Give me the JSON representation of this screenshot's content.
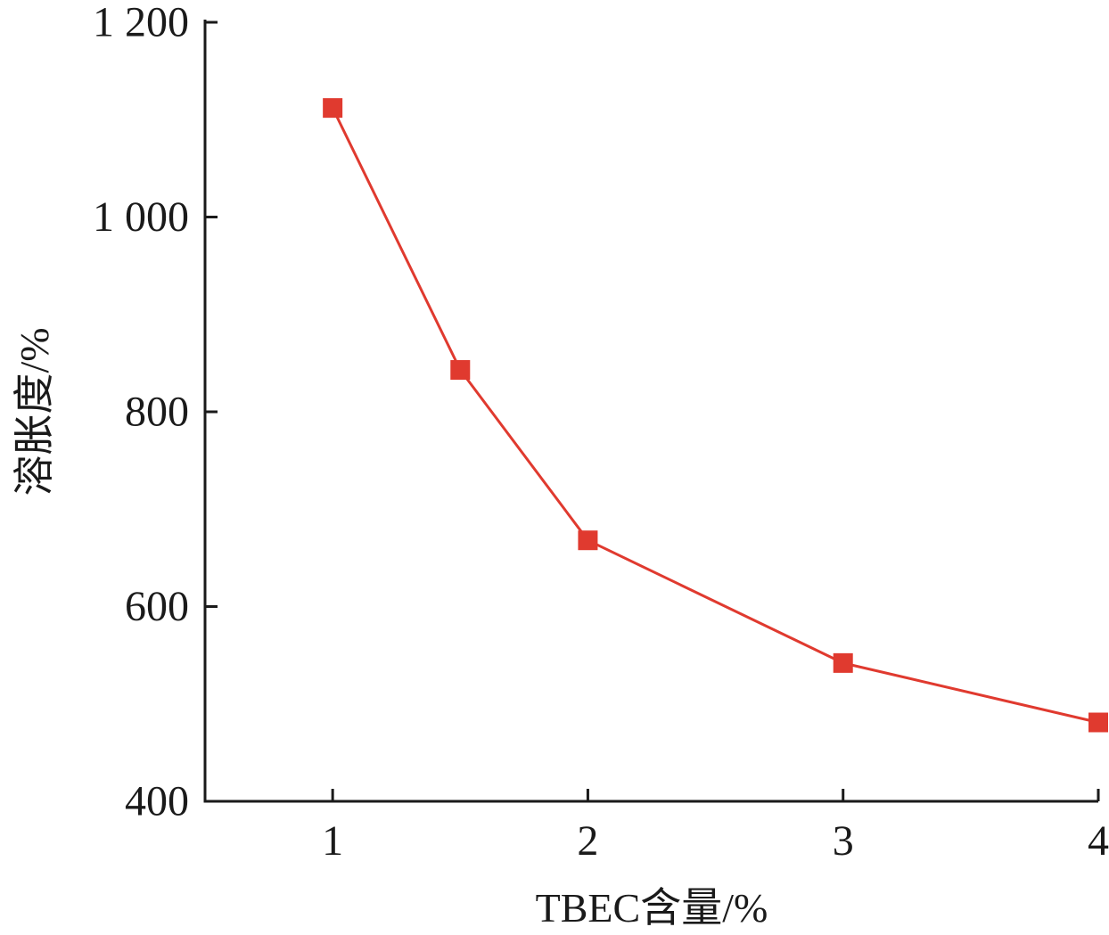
{
  "chart_data": {
    "type": "line",
    "title": "",
    "xlabel": "TBEC含量/%",
    "ylabel": "溶胀度/%",
    "x": [
      1,
      1.5,
      2,
      3,
      4
    ],
    "series": [
      {
        "values": [
          1112,
          843,
          668,
          542,
          481
        ]
      }
    ],
    "xlim": [
      0.5,
      4
    ],
    "ylim": [
      400,
      1200
    ],
    "x_ticks": [
      1,
      2,
      3,
      4
    ],
    "x_tick_labels": [
      "1",
      "2",
      "3",
      "4"
    ],
    "y_ticks": [
      400,
      600,
      800,
      1000,
      1200
    ],
    "y_tick_labels": [
      "400",
      "600",
      "800",
      "1 000",
      "1 200"
    ],
    "grid": false,
    "legend": "none",
    "colors": {
      "series": "#e03a2f",
      "axis": "#1a1a1a"
    },
    "marker": "square"
  }
}
